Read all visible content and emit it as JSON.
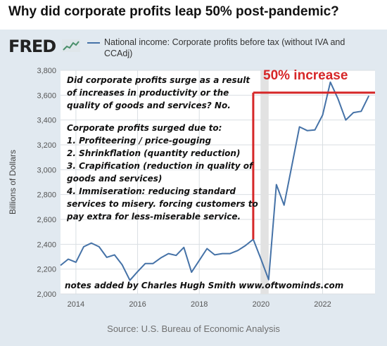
{
  "headline": "Why did corporate profits leap 50% post-pandemic?",
  "fred": {
    "logo_text": "FRED",
    "legend_label": "National income: Corporate profits before tax (without IVA and CCAdj)",
    "source": "Source: U.S. Bureau of Economic Analysis"
  },
  "annotations": {
    "increase_label": "50% increase",
    "question_lines": [
      "Did corporate profits surge as a result",
      "of increases in productivity or the",
      "quality of goods and services? No."
    ],
    "reasons_lines": [
      "Corporate profits surged due to:",
      "1. Profiteering / price-gouging",
      "2. Shrinkflation (quantity reduction)",
      "3. Crapification (reduction in quality of",
      "goods and services)",
      "4. Immiseration: reducing standard",
      "services to misery. forcing customers to",
      "pay extra for less-miserable service."
    ],
    "credit": "notes added by Charles Hugh Smith  www.oftwominds.com",
    "colors": {
      "marker": "#d62728",
      "text": "#111111"
    }
  },
  "chart_data": {
    "type": "line",
    "title": "",
    "xlabel": "",
    "ylabel": "Billions of Dollars",
    "xlim": [
      2013.5,
      2023.7
    ],
    "ylim": [
      2000,
      3800
    ],
    "y_ticks": [
      2000,
      2200,
      2400,
      2600,
      2800,
      3000,
      3200,
      3400,
      3600,
      3800
    ],
    "y_tick_labels": [
      "2,000",
      "2,200",
      "2,400",
      "2,600",
      "2,800",
      "3,000",
      "3,200",
      "3,400",
      "3,600",
      "3,800"
    ],
    "x_ticks": [
      2014,
      2016,
      2018,
      2020,
      2022
    ],
    "x_tick_labels": [
      "2014",
      "2016",
      "2018",
      "2020",
      "2022"
    ],
    "grid": true,
    "recession_shading": [
      2020.0,
      2020.25
    ],
    "reference_level": 3620,
    "reference_start_x": 2019.75,
    "series_color": "#4572a7",
    "series": [
      {
        "name": "National income: Corporate profits before tax (without IVA and CCAdj)",
        "x": [
          2013.5,
          2013.75,
          2014.0,
          2014.25,
          2014.5,
          2014.75,
          2015.0,
          2015.25,
          2015.5,
          2015.75,
          2016.0,
          2016.25,
          2016.5,
          2016.75,
          2017.0,
          2017.25,
          2017.5,
          2017.75,
          2018.0,
          2018.25,
          2018.5,
          2018.75,
          2019.0,
          2019.25,
          2019.5,
          2019.75,
          2020.0,
          2020.25,
          2020.5,
          2020.75,
          2021.0,
          2021.25,
          2021.5,
          2021.75,
          2022.0,
          2022.25,
          2022.5,
          2022.75,
          2023.0,
          2023.25,
          2023.5
        ],
        "values": [
          2230,
          2280,
          2255,
          2380,
          2410,
          2380,
          2295,
          2315,
          2235,
          2110,
          2180,
          2245,
          2245,
          2290,
          2325,
          2310,
          2375,
          2175,
          2270,
          2365,
          2315,
          2325,
          2325,
          2350,
          2390,
          2440,
          2280,
          2115,
          2880,
          2715,
          3030,
          3345,
          3315,
          3320,
          3440,
          3705,
          3570,
          3400,
          3460,
          3470,
          3595
        ]
      }
    ]
  }
}
